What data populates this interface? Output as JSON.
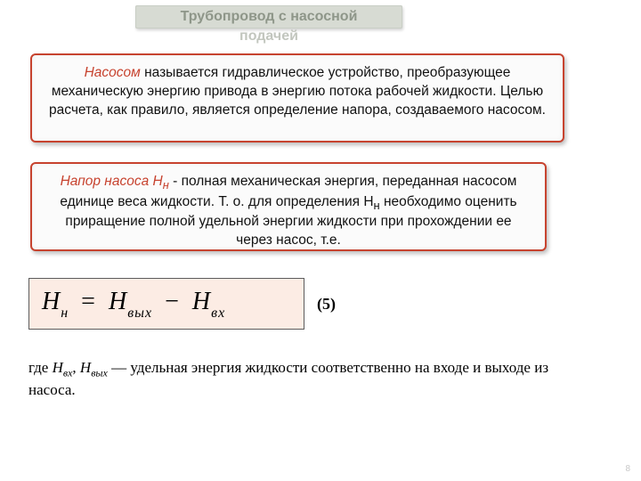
{
  "colors": {
    "title_bg": "#d7dbd3",
    "title_text": "#8e9689",
    "title_sub_text": "#c2c6be",
    "box_border": "#c7432f",
    "box_bg": "#fbfbfb",
    "term_color": "#c7432f",
    "formula_bg": "#fcece4",
    "formula_border": "#5c5c5c",
    "page_bg": "#ffffff"
  },
  "typography": {
    "title_fontsize": 16,
    "body_fontsize": 15.5,
    "formula_fontsize": 28,
    "caption_fontsize": 17
  },
  "title": {
    "line1": "Трубопровод с насосной",
    "line2": "подачей"
  },
  "box1": {
    "term": "Насосом",
    "rest": " называется гидравлическое устройство, преобразующее механическую энергию привода в энергию потока рабочей жидкости. Целью расчета, как правило, является определение напора, создаваемого насосом."
  },
  "box2": {
    "term": "Напор насоса H",
    "term_sub": "н",
    "rest": " - полная механическая энергия, переданная насосом единице веса жидкости. Т. о. для определения H",
    "rest_sub": "н",
    "rest2": " необходимо оценить приращение полной удельной энергии жидкости при прохождении ее через насос, т.е."
  },
  "formula": {
    "lhs_var": "H",
    "lhs_sub": "н",
    "rhs1_var": "H",
    "rhs1_sub": "вых",
    "rhs2_var": "H",
    "rhs2_sub": "вх",
    "number": "(5)"
  },
  "caption": {
    "prefix": "где ",
    "var1": "H",
    "var1_sub": "вх",
    "sep": ", ",
    "var2": "H",
    "var2_sub": "вых",
    "rest": " — удельная энергия жидкости соответственно на входе и выходе из насоса."
  },
  "page_number": "8"
}
